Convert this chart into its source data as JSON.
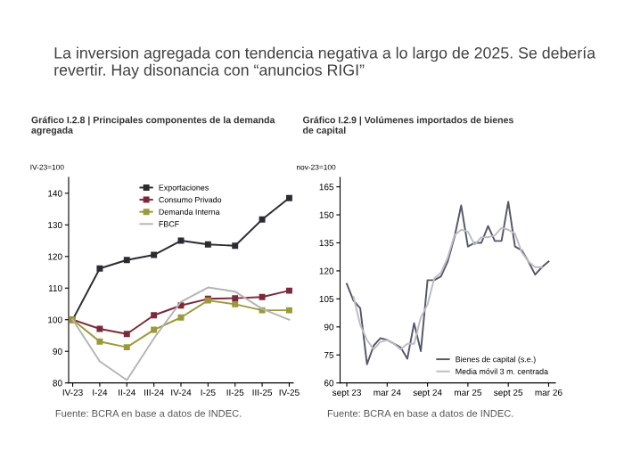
{
  "chart_data": [
    {
      "type": "other",
      "title": "La inversion agregada con tendencia negativa a lo largo de 2025. Se debería revertir. Hay disonancia con “anuncios RIGI”"
    },
    {
      "type": "line",
      "title": "Gráfico I.2.8 | Principales componentes de la demanda\nagregada",
      "ylabel": "IV-23=100",
      "categories": [
        "IV-23",
        "I-24",
        "II-24",
        "III-24",
        "IV-24",
        "I-25",
        "II-25",
        "III-25",
        "IV-25"
      ],
      "series": [
        {
          "name": "Exportaciones",
          "color": "#2b2b33",
          "marker": "square",
          "values": [
            100,
            116.2,
            118.9,
            120.5,
            125,
            123.8,
            123.4,
            131.7,
            138.5
          ]
        },
        {
          "name": "Consumo Privado",
          "color": "#7b2a3a",
          "marker": "square",
          "values": [
            100,
            97.1,
            95.5,
            101.4,
            104.5,
            106.6,
            106.8,
            107.2,
            109.2
          ]
        },
        {
          "name": "Demanda Interna",
          "color": "#9a9a3a",
          "marker": "square",
          "values": [
            100,
            93.1,
            91.3,
            96.8,
            100.7,
            106.1,
            104.9,
            103,
            103
          ]
        },
        {
          "name": "FBCF",
          "color": "#b4b4b4",
          "marker": "none",
          "values": [
            100,
            86.8,
            80.9,
            94.1,
            105.7,
            110.2,
            108.9,
            103.4,
            100
          ]
        }
      ],
      "ylim": [
        80,
        145
      ],
      "yticks": [
        80,
        90,
        100,
        110,
        120,
        130,
        140
      ],
      "legend": "top",
      "grid": false,
      "annotations": [
        "Fuente: BCRA en base a datos de INDEC."
      ]
    },
    {
      "type": "line",
      "title": "Gráfico I.2.9 | Volúmenes importados de bienes\nde capital",
      "ylabel": "nov-23=100",
      "x": [
        "2023-09",
        "2023-10",
        "2023-11",
        "2023-12",
        "2024-01",
        "2024-02",
        "2024-03",
        "2024-04",
        "2024-05",
        "2024-06",
        "2024-07",
        "2024-08",
        "2024-09",
        "2024-10",
        "2024-11",
        "2024-12",
        "2025-01",
        "2025-02",
        "2025-03",
        "2025-04",
        "2025-05",
        "2025-06",
        "2025-07",
        "2025-08",
        "2025-09",
        "2025-10",
        "2025-11",
        "2025-12",
        "2026-01",
        "2026-02",
        "2026-03"
      ],
      "series": [
        {
          "name": "Bienes de capital (s.e.)",
          "color": "#55566a",
          "values": [
            113,
            104,
            100,
            70,
            80,
            84,
            83,
            81,
            79,
            73,
            92,
            77,
            115,
            115,
            117,
            125,
            138,
            155,
            133,
            135,
            135,
            144,
            136,
            136,
            157,
            133,
            131,
            125,
            118,
            122,
            125
          ]
        },
        {
          "name": "Media móvil 3 m. centrada",
          "color": "#bcbcc4",
          "values": [
            null,
            106,
            91,
            83,
            78,
            82,
            83,
            81,
            78,
            81,
            81,
            95,
            102,
            116,
            119,
            127,
            139,
            142,
            141,
            134,
            138,
            138,
            139,
            143,
            142,
            140,
            130,
            125,
            122,
            122,
            null
          ]
        }
      ],
      "xlim": [
        "2023-08",
        "2026-04"
      ],
      "xticks": [
        {
          "value": "2023-09",
          "label": "sept 23"
        },
        {
          "value": "2024-03",
          "label": "mar 24"
        },
        {
          "value": "2024-09",
          "label": "sept 24"
        },
        {
          "value": "2025-03",
          "label": "mar 25"
        },
        {
          "value": "2025-09",
          "label": "sept 25"
        },
        {
          "value": "2026-03",
          "label": "mar 26"
        }
      ],
      "ylim": [
        60,
        170
      ],
      "yticks": [
        60,
        75,
        90,
        105,
        120,
        135,
        150,
        165
      ],
      "legend": "bottom right",
      "grid": false,
      "annotations": [
        "Fuente: BCRA en base a datos de INDEC."
      ]
    }
  ]
}
